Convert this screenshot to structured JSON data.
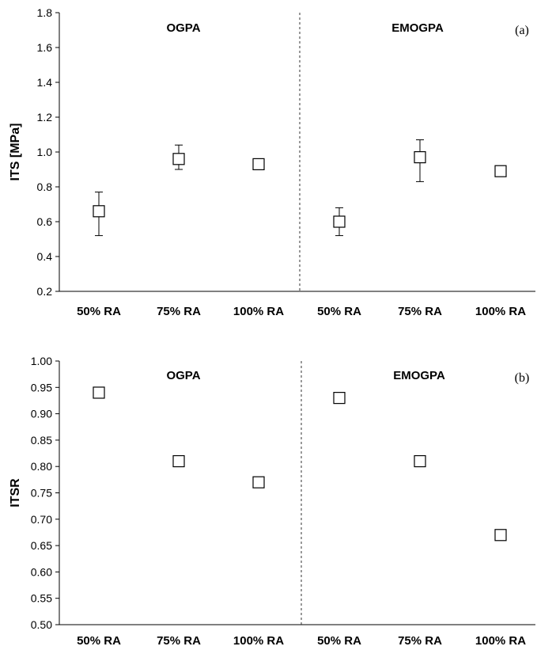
{
  "chart_data": [
    {
      "type": "scatter",
      "panel_label": "(a)",
      "ylabel": "ITS [MPa]",
      "ylim": [
        0.2,
        1.8
      ],
      "yticks": [
        "0.2",
        "0.4",
        "0.6",
        "0.8",
        "1.0",
        "1.2",
        "1.4",
        "1.6",
        "1.8"
      ],
      "groups": [
        "OGPA",
        "EMOGPA"
      ],
      "categories": [
        "50% RA",
        "75% RA",
        "100% RA",
        "50% RA",
        "75% RA",
        "100% RA"
      ],
      "values": [
        0.66,
        0.96,
        0.93,
        0.6,
        0.97,
        0.89
      ],
      "error_low": [
        0.52,
        0.9,
        0.93,
        0.52,
        0.83,
        0.89
      ],
      "error_high": [
        0.77,
        1.04,
        0.93,
        0.68,
        1.07,
        0.89
      ],
      "marker": "open-square",
      "grid": false,
      "separator": "dashed vertical line between groups"
    },
    {
      "type": "scatter",
      "panel_label": "(b)",
      "ylabel": "ITSR",
      "ylim": [
        0.5,
        1.0
      ],
      "yticks": [
        "0.50",
        "0.55",
        "0.60",
        "0.65",
        "0.70",
        "0.75",
        "0.80",
        "0.85",
        "0.90",
        "0.95",
        "1.00"
      ],
      "groups": [
        "OGPA",
        "EMOGPA"
      ],
      "categories": [
        "50% RA",
        "75% RA",
        "100% RA",
        "50% RA",
        "75% RA",
        "100% RA"
      ],
      "values": [
        0.94,
        0.81,
        0.77,
        0.93,
        0.81,
        0.67
      ],
      "marker": "open-square",
      "grid": false,
      "separator": "dashed vertical line between groups"
    }
  ]
}
